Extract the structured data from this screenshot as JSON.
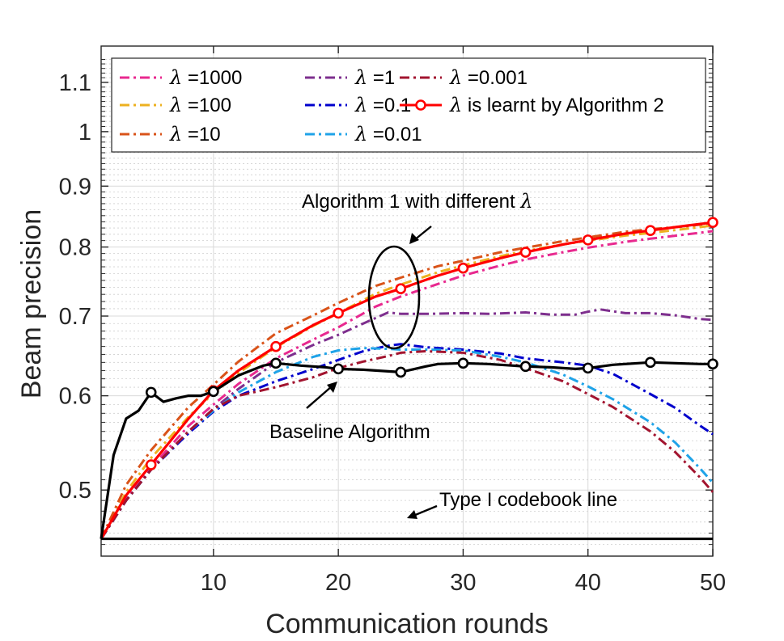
{
  "chart_data": {
    "type": "line",
    "title": "",
    "xlabel": "Communication rounds",
    "ylabel": "Beam precision",
    "x_scale": "linear",
    "y_scale": "log",
    "xlim": [
      1,
      50
    ],
    "ylim": [
      0.44,
      1.18
    ],
    "xticks": [
      10,
      20,
      30,
      40,
      50
    ],
    "xtick_labels": [
      "10",
      "20",
      "30",
      "40",
      "50"
    ],
    "yticks": [
      0.5,
      0.6,
      0.7,
      0.8,
      0.9,
      1.0,
      1.1
    ],
    "ytick_labels": [
      "0.5",
      "0.6",
      "0.7",
      "0.8",
      "0.9",
      "1",
      "1.1"
    ],
    "legend_position": "top",
    "legend_symbol": "λ",
    "series": [
      {
        "name": "λ =1000",
        "label_suffix": " =1000",
        "color": "#e8298f",
        "dash": "12 5 3 5",
        "marker": "none",
        "x": [
          1,
          3,
          5,
          8,
          10,
          12,
          15,
          18,
          20,
          23,
          25,
          28,
          30,
          33,
          35,
          38,
          40,
          43,
          45,
          48,
          50
        ],
        "y": [
          0.455,
          0.492,
          0.522,
          0.566,
          0.59,
          0.614,
          0.645,
          0.669,
          0.685,
          0.713,
          0.727,
          0.745,
          0.757,
          0.772,
          0.781,
          0.792,
          0.799,
          0.808,
          0.813,
          0.82,
          0.825
        ]
      },
      {
        "name": "λ =100",
        "label_suffix": " =100",
        "color": "#edb120",
        "dash": "12 5 3 5",
        "marker": "none",
        "x": [
          1,
          3,
          5,
          8,
          10,
          12,
          15,
          18,
          20,
          23,
          25,
          28,
          30,
          33,
          35,
          38,
          40,
          43,
          45,
          48,
          50
        ],
        "y": [
          0.455,
          0.498,
          0.532,
          0.576,
          0.603,
          0.627,
          0.659,
          0.687,
          0.704,
          0.731,
          0.744,
          0.762,
          0.772,
          0.786,
          0.794,
          0.804,
          0.81,
          0.818,
          0.822,
          0.829,
          0.834
        ]
      },
      {
        "name": "λ =10",
        "label_suffix": " =10",
        "color": "#d95319",
        "dash": "12 5 3 5",
        "marker": "none",
        "x": [
          1,
          3,
          5,
          8,
          10,
          12,
          15,
          18,
          20,
          23,
          25,
          28,
          30,
          33,
          35,
          38,
          40,
          43,
          45,
          48,
          50
        ],
        "y": [
          0.455,
          0.505,
          0.54,
          0.587,
          0.613,
          0.641,
          0.677,
          0.701,
          0.718,
          0.742,
          0.754,
          0.771,
          0.779,
          0.792,
          0.799,
          0.809,
          0.815,
          0.824,
          0.828,
          0.833,
          0.838
        ]
      },
      {
        "name": "λ =1",
        "label_suffix": " =1",
        "color": "#7e2f8e",
        "dash": "12 5 3 5",
        "marker": "none",
        "x": [
          1,
          3,
          5,
          8,
          10,
          12,
          15,
          18,
          20,
          22,
          24,
          25,
          27,
          30,
          32,
          35,
          37,
          39,
          40,
          41,
          43,
          45,
          47,
          49,
          50
        ],
        "y": [
          0.455,
          0.49,
          0.52,
          0.56,
          0.585,
          0.608,
          0.64,
          0.662,
          0.675,
          0.69,
          0.705,
          0.703,
          0.703,
          0.704,
          0.703,
          0.705,
          0.702,
          0.702,
          0.706,
          0.709,
          0.704,
          0.704,
          0.701,
          0.696,
          0.695
        ]
      },
      {
        "name": "λ =0.1",
        "label_suffix": " =0.1",
        "color": "#0000cc",
        "dash": "12 5 3 5",
        "marker": "none",
        "x": [
          1,
          3,
          5,
          8,
          10,
          12,
          15,
          18,
          20,
          22,
          24,
          25,
          27,
          30,
          33,
          35,
          38,
          40,
          42,
          45,
          47,
          49,
          50
        ],
        "y": [
          0.455,
          0.49,
          0.52,
          0.558,
          0.582,
          0.6,
          0.617,
          0.632,
          0.643,
          0.654,
          0.661,
          0.663,
          0.659,
          0.656,
          0.651,
          0.645,
          0.64,
          0.636,
          0.626,
          0.602,
          0.586,
          0.566,
          0.557
        ]
      },
      {
        "name": "λ =0.01",
        "label_suffix": " =0.01",
        "color": "#1fa3e8",
        "dash": "12 5 3 5",
        "marker": "none",
        "x": [
          1,
          3,
          5,
          8,
          10,
          12,
          15,
          18,
          20,
          22,
          24,
          25,
          27,
          30,
          33,
          35,
          38,
          40,
          42,
          45,
          47,
          49,
          50
        ],
        "y": [
          0.455,
          0.49,
          0.52,
          0.56,
          0.583,
          0.604,
          0.628,
          0.647,
          0.655,
          0.658,
          0.657,
          0.656,
          0.656,
          0.655,
          0.647,
          0.64,
          0.625,
          0.611,
          0.596,
          0.57,
          0.548,
          0.521,
          0.507
        ]
      },
      {
        "name": "λ =0.001",
        "label_suffix": " =0.001",
        "color": "#a2142f",
        "dash": "12 5 3 5",
        "marker": "none",
        "x": [
          1,
          3,
          5,
          8,
          10,
          12,
          15,
          18,
          20,
          22,
          24,
          25,
          27,
          30,
          33,
          35,
          38,
          40,
          42,
          45,
          47,
          49,
          50
        ],
        "y": [
          0.455,
          0.49,
          0.52,
          0.56,
          0.585,
          0.6,
          0.61,
          0.622,
          0.633,
          0.641,
          0.648,
          0.652,
          0.654,
          0.652,
          0.643,
          0.633,
          0.617,
          0.602,
          0.587,
          0.56,
          0.538,
          0.512,
          0.498
        ]
      },
      {
        "name": "λ is learnt by Algorithm 2",
        "label_suffix": " is learnt by Algorithm 2",
        "color": "#ff0000",
        "dash": "none",
        "marker": "circle",
        "x": [
          1,
          3,
          5,
          8,
          10,
          12,
          15,
          18,
          20,
          23,
          25,
          28,
          30,
          33,
          35,
          38,
          40,
          43,
          45,
          48,
          50
        ],
        "y": [
          0.455,
          0.495,
          0.525,
          0.574,
          0.606,
          0.63,
          0.66,
          0.688,
          0.704,
          0.727,
          0.738,
          0.757,
          0.768,
          0.783,
          0.792,
          0.804,
          0.811,
          0.821,
          0.826,
          0.834,
          0.839
        ],
        "marker_x": [
          5,
          10,
          15,
          20,
          25,
          30,
          35,
          40,
          45,
          50
        ]
      },
      {
        "name": "Baseline Algorithm",
        "label_suffix": "",
        "color": "#000000",
        "dash": "none",
        "marker": "circle",
        "in_legend": false,
        "x": [
          1,
          2,
          3,
          4,
          5,
          6,
          7,
          8,
          9,
          10,
          12,
          14,
          15,
          17,
          19,
          20,
          22,
          24,
          25,
          27,
          28,
          30,
          32,
          35,
          37,
          39,
          40,
          42,
          44,
          45,
          47,
          49,
          50
        ],
        "y": [
          0.455,
          0.535,
          0.574,
          0.583,
          0.604,
          0.593,
          0.597,
          0.6,
          0.6,
          0.605,
          0.624,
          0.636,
          0.639,
          0.636,
          0.634,
          0.632,
          0.631,
          0.629,
          0.628,
          0.635,
          0.638,
          0.639,
          0.638,
          0.635,
          0.634,
          0.632,
          0.633,
          0.637,
          0.639,
          0.64,
          0.639,
          0.638,
          0.638
        ],
        "marker_x": [
          5,
          10,
          15,
          20,
          25,
          30,
          35,
          40,
          45,
          50
        ],
        "marker_y": [
          0.604,
          0.605,
          0.639,
          0.632,
          0.628,
          0.639,
          0.635,
          0.633,
          0.64,
          0.638
        ]
      },
      {
        "name": "Type I codebook line",
        "label_suffix": "",
        "color": "#000000",
        "dash": "none",
        "marker": "none",
        "in_legend": false,
        "x": [
          1,
          50
        ],
        "y": [
          0.455,
          0.455
        ]
      }
    ],
    "annotations": [
      {
        "text_prefix": "Algorithm 1 with different ",
        "symbol": "λ"
      },
      {
        "text": "Baseline Algorithm"
      },
      {
        "text": "Type I codebook line"
      }
    ]
  }
}
